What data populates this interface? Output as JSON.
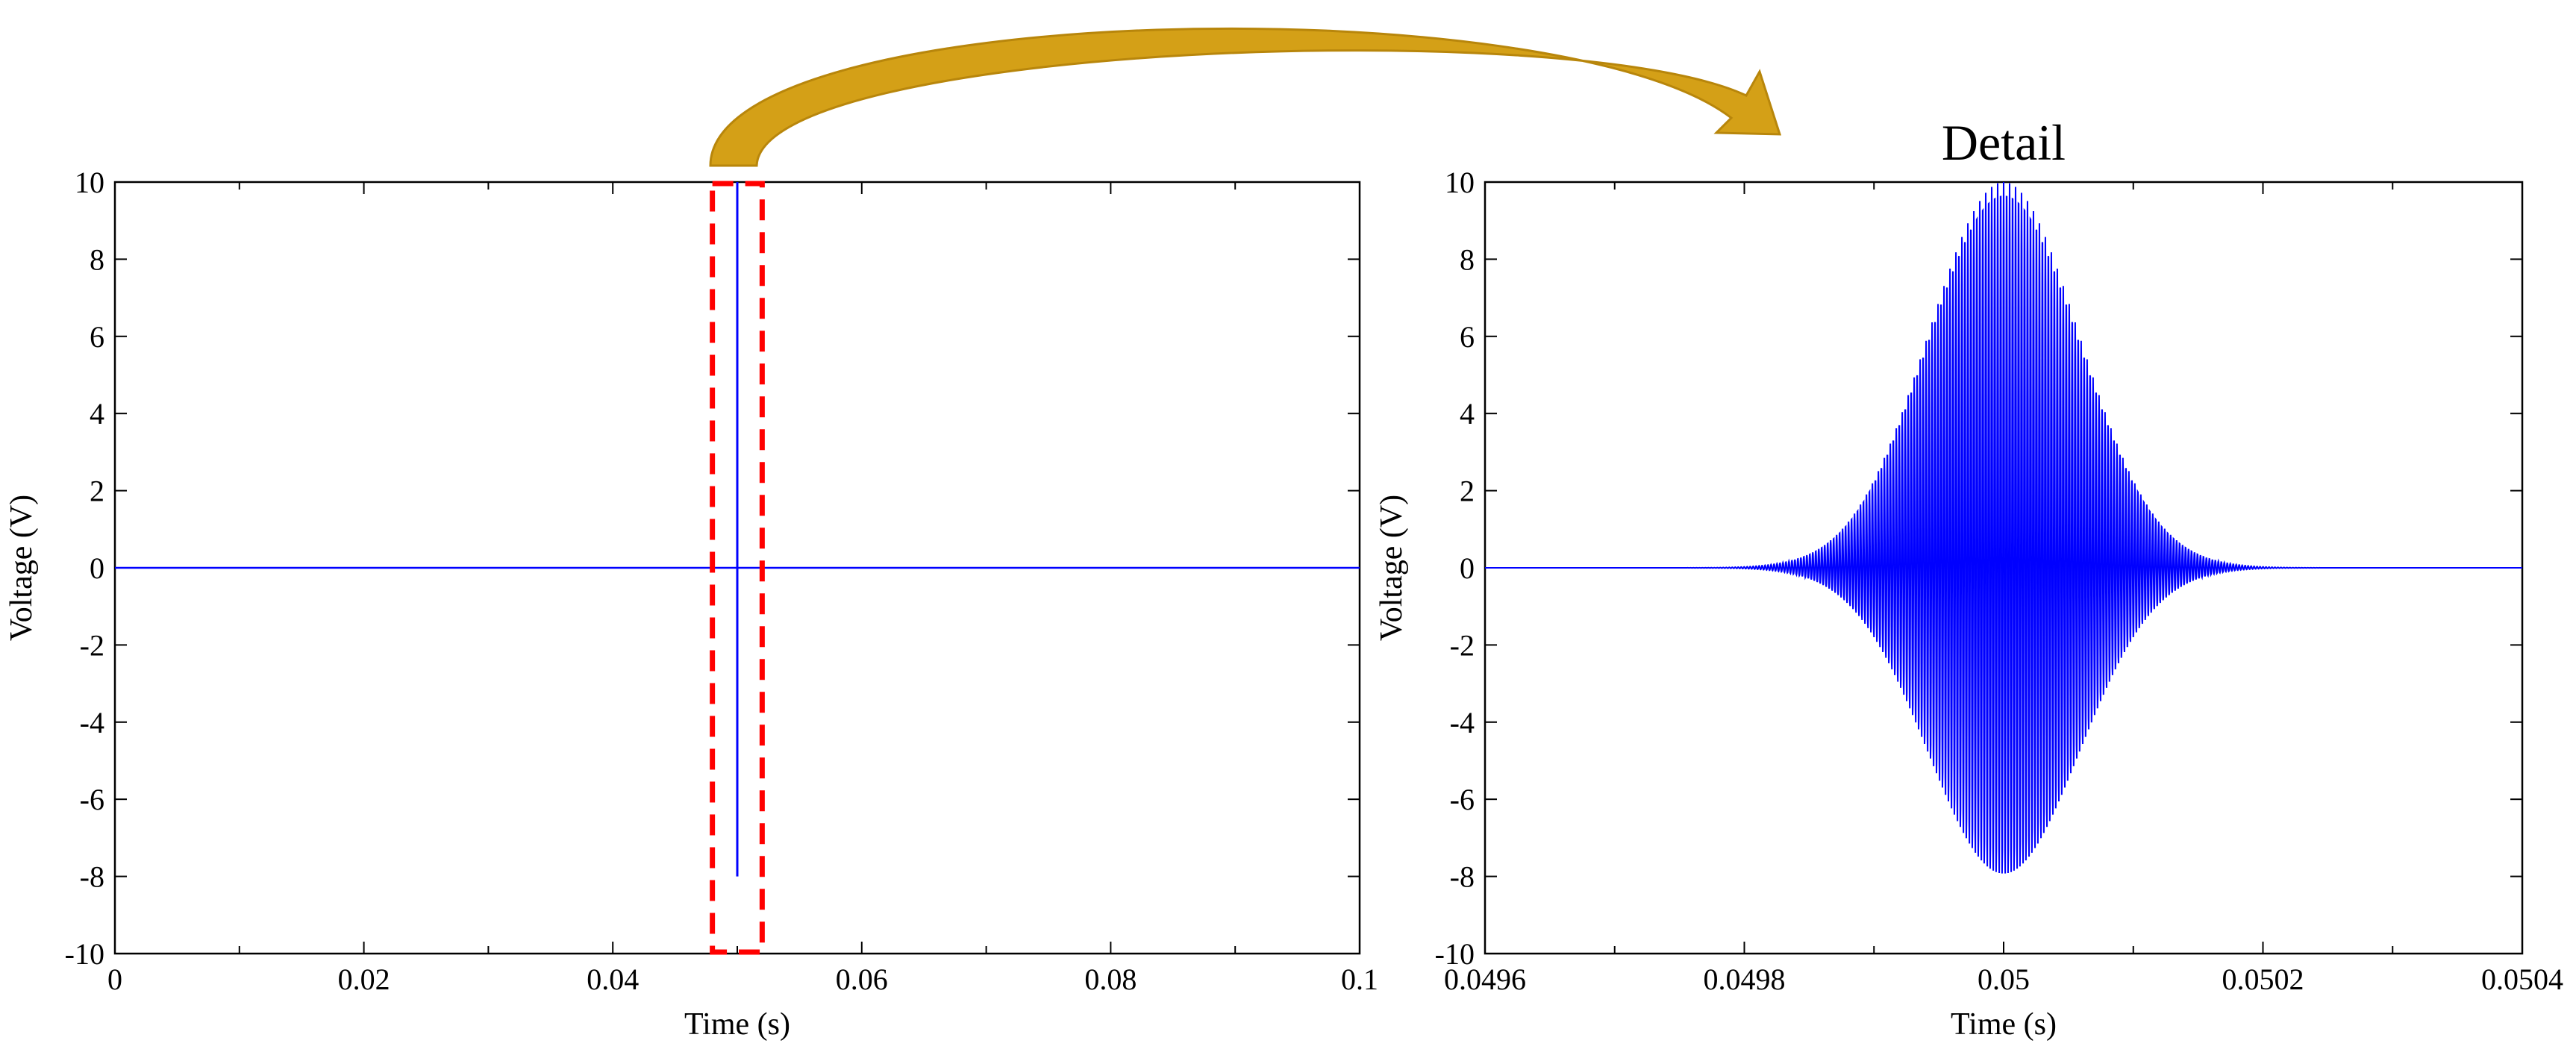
{
  "chart_data": [
    {
      "type": "line",
      "title": "",
      "xlabel": "Time (s)",
      "ylabel": "Voltage (V)",
      "xlim": [
        0,
        0.1
      ],
      "ylim": [
        -10,
        10
      ],
      "xticks": [
        0,
        0.02,
        0.04,
        0.06,
        0.08,
        0.1
      ],
      "xtick_labels": [
        "0",
        "0.02",
        "0.04",
        "0.06",
        "0.08",
        "0.1"
      ],
      "yticks": [
        10,
        8,
        6,
        4,
        2,
        0,
        -2,
        -4,
        -6,
        -8,
        -10
      ],
      "ytick_labels": [
        "10",
        "8",
        "6",
        "4",
        "2",
        "0",
        "-2",
        "-4",
        "-6",
        "-8",
        "-10"
      ],
      "grid": false,
      "series": [
        {
          "color": "#0000ff",
          "signal": "gaussian-modulated burst",
          "center": 0.05,
          "peak": 10,
          "trough": -8,
          "x": [
            0,
            0.0498,
            0.05,
            0.05,
            0.0502,
            0.1
          ],
          "y": [
            0,
            0,
            10,
            -8,
            0,
            0
          ]
        }
      ],
      "highlight_region": {
        "x": [
          0.048,
          0.052
        ],
        "style": "red dashed rectangle",
        "color": "#ff0000"
      }
    },
    {
      "type": "line",
      "title": "Detail",
      "xlabel": "Time (s)",
      "ylabel": "Voltage (V)",
      "xlim": [
        0.0496,
        0.0504
      ],
      "ylim": [
        -10,
        10
      ],
      "xticks": [
        0.0496,
        0.0498,
        0.05,
        0.0502,
        0.0504
      ],
      "xtick_labels": [
        "0.0496",
        "0.0498",
        "0.05",
        "0.0502",
        "0.0504"
      ],
      "yticks": [
        10,
        8,
        6,
        4,
        2,
        0,
        -2,
        -4,
        -6,
        -8,
        -10
      ],
      "ytick_labels": [
        "10",
        "8",
        "6",
        "4",
        "2",
        "0",
        "-2",
        "-4",
        "-6",
        "-8",
        "-10"
      ],
      "grid": false,
      "series": [
        {
          "color": "#0000ff",
          "signal": "gaussian-modulated burst",
          "center": 0.05,
          "envelope_positive_peak": 10,
          "envelope_negative_peak": -8,
          "burst_start": 0.04982,
          "burst_end": 0.05018,
          "cycle_period": 2.3e-06
        }
      ]
    }
  ],
  "arrow": {
    "color": "#d4a017",
    "from": "left chart highlight",
    "to": "Detail chart"
  }
}
